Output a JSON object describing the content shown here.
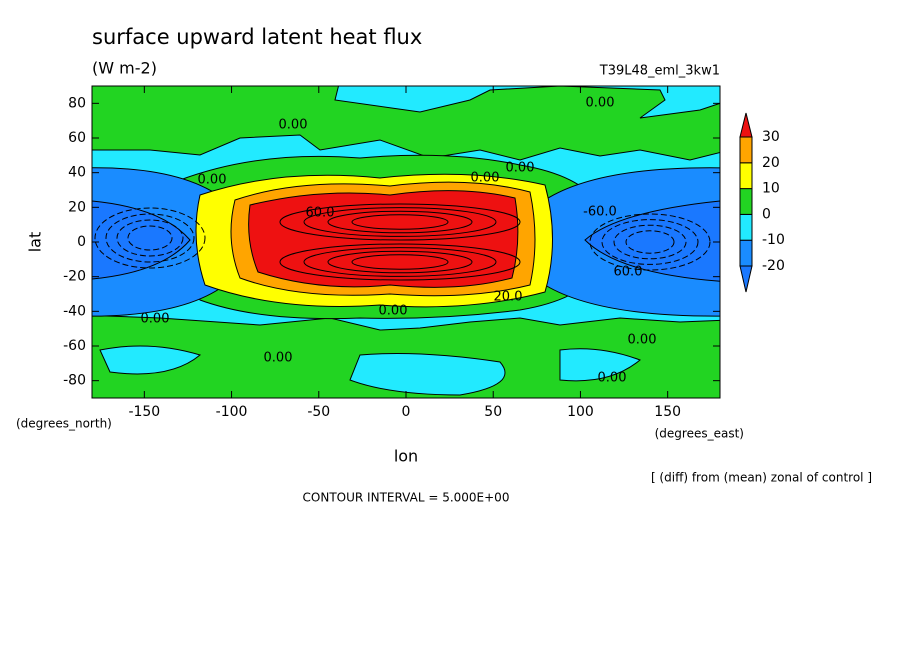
{
  "chart_data": {
    "type": "contour",
    "title": "surface upward latent heat flux",
    "units": "(W m-2)",
    "run_label": "T39L48_eml_3kw1",
    "x_label": "lon",
    "y_label": "lat",
    "x_units": "(degrees_east)",
    "y_units": "(degrees_north)",
    "note": "[ (diff) from (mean) zonal of control ]",
    "contour_interval": "CONTOUR INTERVAL = 5.000E+00",
    "xlim": [
      -180,
      180
    ],
    "ylim": [
      -90,
      90
    ],
    "xticks": [
      -150,
      -100,
      -50,
      0,
      50,
      100,
      150
    ],
    "yticks": [
      -80,
      -60,
      -40,
      -20,
      0,
      20,
      40,
      60,
      80
    ],
    "colorbar": {
      "levels": [
        -20,
        -10,
        0,
        10,
        20,
        30
      ],
      "colors": [
        "#1a78ff",
        "#1a8cff",
        "#22eaff",
        "#22d422",
        "#ffff00",
        "#ffa500",
        "#ee1111"
      ]
    },
    "contour_labels": [
      "0.00",
      "0.00",
      "0.00",
      "0.00",
      "0.00",
      "0.00",
      "0.00",
      "0.00",
      "0.00",
      "0.00",
      "-60.0",
      "60.0",
      "20.0",
      "60.0"
    ]
  }
}
